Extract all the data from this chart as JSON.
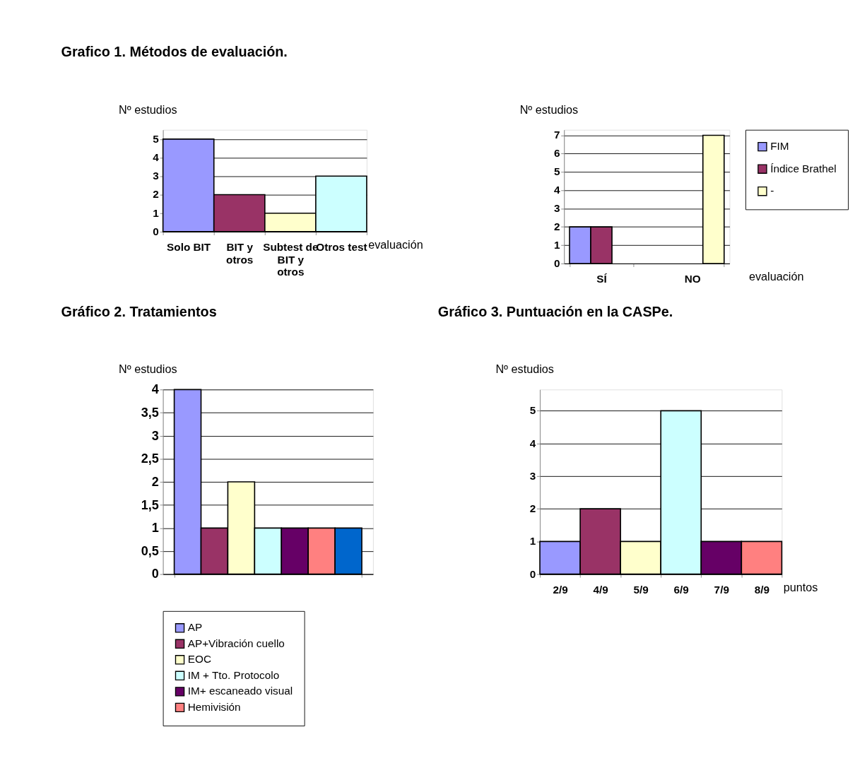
{
  "chart_data": [
    {
      "type": "bar",
      "title": "Grafico 1. Métodos de evaluación.",
      "ylabel": "Nº estudios",
      "xlabel": "evaluación",
      "categories": [
        "Solo BIT",
        "BIT y otros",
        "Subtest de BIT y otros",
        "Otros test"
      ],
      "values": [
        5,
        2,
        1,
        3
      ],
      "colors": [
        "#9999ff",
        "#993366",
        "#ffffcc",
        "#ccffff"
      ],
      "ylim": [
        0,
        5.5
      ],
      "yticks": [
        0,
        1,
        2,
        3,
        4,
        5
      ],
      "grid": "y"
    },
    {
      "type": "bar",
      "ylabel": "Nº estudios",
      "xlabel": "evaluación",
      "categories": [
        "SÍ",
        "NO"
      ],
      "series": [
        {
          "name": "FIM",
          "color": "#9999ff",
          "values": [
            2,
            null
          ]
        },
        {
          "name": "Índice Brathel",
          "color": "#993366",
          "values": [
            2,
            null
          ]
        },
        {
          "name": "-",
          "color": "#ffffcc",
          "values": [
            null,
            7
          ]
        }
      ],
      "ylim": [
        0,
        7.3
      ],
      "yticks": [
        0,
        1,
        2,
        3,
        4,
        5,
        6,
        7
      ],
      "grid": "y",
      "legend": "right"
    },
    {
      "type": "bar",
      "title": "Gráfico 2. Tratamientos",
      "ylabel": "Nº estudios",
      "categories": [
        null
      ],
      "series": [
        {
          "name": "AP",
          "color": "#9999ff",
          "values": [
            4
          ]
        },
        {
          "name": "AP+Vibración cuello",
          "color": "#993366",
          "values": [
            1
          ]
        },
        {
          "name": "EOC",
          "color": "#ffffcc",
          "values": [
            2
          ]
        },
        {
          "name": "IM + Tto. Protocolo",
          "color": "#ccffff",
          "values": [
            1
          ]
        },
        {
          "name": "IM+ escaneado visual",
          "color": "#660066",
          "values": [
            1
          ]
        },
        {
          "name": "Hemivisión",
          "color": "#ff8080",
          "values": [
            1
          ]
        },
        {
          "color": "#0066cc",
          "values": [
            1
          ]
        }
      ],
      "ylim": [
        0,
        4
      ],
      "yticks": [
        0,
        {
          "value": 0.5,
          "label": "0,5"
        },
        1,
        {
          "value": 1.5,
          "label": "1,5"
        },
        2,
        {
          "value": 2.5,
          "label": "2,5"
        },
        3,
        {
          "value": 3.5,
          "label": "3,5"
        },
        4
      ],
      "grid": "y",
      "legend": "bottom"
    },
    {
      "type": "bar",
      "title": "Gráfico 3. Puntuación en la CASPe.",
      "ylabel": "Nº estudios",
      "xlabel": "puntos",
      "categories": [
        "2/9",
        "4/9",
        "5/9",
        "6/9",
        "7/9",
        "8/9"
      ],
      "values": [
        1,
        2,
        1,
        5,
        1,
        1
      ],
      "colors": [
        "#9999ff",
        "#993366",
        "#ffffcc",
        "#ccffff",
        "#660066",
        "#ff8080"
      ],
      "ylim": [
        0,
        5.65
      ],
      "yticks": [
        0,
        1,
        2,
        3,
        4,
        5
      ],
      "grid": "y"
    }
  ]
}
